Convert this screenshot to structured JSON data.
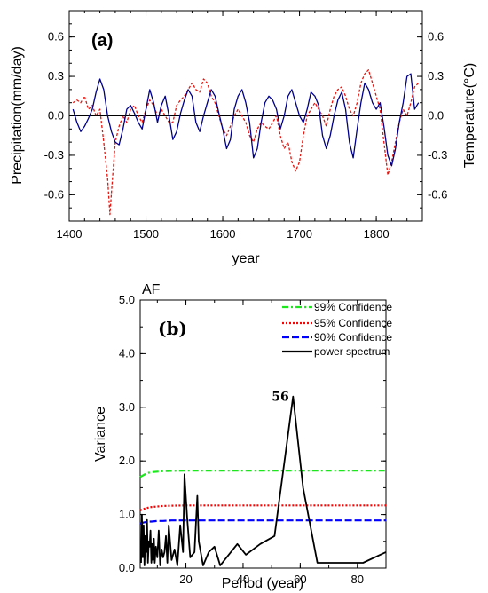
{
  "chart_data": [
    {
      "panel_label": "(a)",
      "type": "line",
      "xlabel": "year",
      "ylabel_left": "Precipitation(mm/day)",
      "ylabel_right": "Temperature(°C)",
      "xlim": [
        1400,
        1860
      ],
      "ylim": [
        -0.8,
        0.8
      ],
      "x_ticks": [
        1400,
        1500,
        1600,
        1700,
        1800
      ],
      "y_ticks": [
        -0.6,
        -0.3,
        0.0,
        0.3,
        0.6
      ],
      "y_tick_labels": [
        "-0.6",
        "-0.3",
        "0.0",
        "0.3",
        "0.6"
      ],
      "colors": {
        "precip": "#00008b",
        "temp": "#e8150f",
        "left_label": "#1a1aa8",
        "right_label": "#e8150f"
      },
      "series": [
        {
          "key": "precip",
          "style": "solid",
          "x": [
            1405,
            1410,
            1415,
            1420,
            1425,
            1430,
            1435,
            1440,
            1445,
            1450,
            1455,
            1460,
            1465,
            1470,
            1475,
            1480,
            1485,
            1490,
            1495,
            1500,
            1505,
            1510,
            1515,
            1520,
            1525,
            1530,
            1535,
            1540,
            1545,
            1550,
            1555,
            1560,
            1565,
            1570,
            1575,
            1580,
            1585,
            1590,
            1595,
            1600,
            1605,
            1610,
            1615,
            1620,
            1625,
            1630,
            1635,
            1640,
            1645,
            1650,
            1655,
            1660,
            1665,
            1670,
            1675,
            1680,
            1685,
            1690,
            1695,
            1700,
            1705,
            1710,
            1715,
            1720,
            1725,
            1730,
            1735,
            1740,
            1745,
            1750,
            1755,
            1760,
            1765,
            1770,
            1775,
            1780,
            1785,
            1790,
            1795,
            1800,
            1805,
            1810,
            1815,
            1820,
            1825,
            1830,
            1835,
            1840,
            1845,
            1850,
            1855
          ],
          "y": [
            0.05,
            -0.05,
            -0.12,
            -0.08,
            -0.02,
            0.05,
            0.18,
            0.28,
            0.2,
            0.0,
            -0.12,
            -0.2,
            -0.22,
            -0.1,
            0.05,
            0.08,
            0.02,
            -0.05,
            -0.1,
            0.05,
            0.2,
            0.1,
            -0.05,
            0.08,
            0.15,
            0.0,
            -0.18,
            -0.12,
            0.02,
            0.12,
            0.2,
            0.15,
            -0.05,
            -0.12,
            0.0,
            0.1,
            0.2,
            0.15,
            0.02,
            -0.1,
            -0.25,
            -0.18,
            0.05,
            0.15,
            0.2,
            0.1,
            -0.05,
            -0.32,
            -0.25,
            -0.05,
            0.1,
            0.15,
            0.12,
            0.05,
            -0.1,
            0.0,
            0.15,
            0.2,
            0.1,
            0.0,
            -0.05,
            0.05,
            0.18,
            0.15,
            0.08,
            -0.15,
            -0.25,
            -0.15,
            0.0,
            0.12,
            0.18,
            0.05,
            -0.2,
            -0.32,
            -0.1,
            0.1,
            0.25,
            0.2,
            0.1,
            0.05,
            0.1,
            -0.08,
            -0.3,
            -0.38,
            -0.25,
            -0.05,
            0.1,
            0.3,
            0.32,
            0.05,
            0.1
          ]
        },
        {
          "key": "temp",
          "style": "dashed",
          "x": [
            1405,
            1410,
            1415,
            1420,
            1425,
            1430,
            1435,
            1440,
            1445,
            1450,
            1453,
            1456,
            1460,
            1465,
            1470,
            1475,
            1480,
            1485,
            1490,
            1495,
            1500,
            1505,
            1510,
            1515,
            1520,
            1525,
            1530,
            1535,
            1540,
            1545,
            1550,
            1555,
            1560,
            1565,
            1570,
            1575,
            1580,
            1585,
            1590,
            1595,
            1600,
            1605,
            1610,
            1615,
            1620,
            1625,
            1630,
            1635,
            1640,
            1645,
            1650,
            1655,
            1660,
            1665,
            1670,
            1675,
            1680,
            1685,
            1690,
            1695,
            1700,
            1705,
            1710,
            1715,
            1720,
            1725,
            1730,
            1735,
            1740,
            1745,
            1750,
            1755,
            1760,
            1765,
            1770,
            1775,
            1780,
            1785,
            1790,
            1795,
            1800,
            1805,
            1810,
            1815,
            1820,
            1825,
            1830,
            1835,
            1840,
            1845,
            1850,
            1855
          ],
          "y": [
            0.1,
            0.12,
            0.1,
            0.15,
            0.05,
            0.08,
            0.0,
            0.05,
            -0.2,
            -0.48,
            -0.75,
            -0.5,
            -0.2,
            -0.08,
            0.0,
            -0.05,
            0.05,
            0.08,
            0.0,
            -0.05,
            0.05,
            0.12,
            0.08,
            0.0,
            0.05,
            0.0,
            -0.05,
            -0.05,
            0.08,
            0.12,
            0.15,
            0.2,
            0.25,
            0.2,
            0.18,
            0.28,
            0.25,
            0.15,
            0.1,
            0.0,
            -0.1,
            -0.15,
            -0.08,
            0.0,
            0.05,
            0.0,
            -0.05,
            -0.15,
            -0.2,
            -0.1,
            -0.05,
            -0.08,
            -0.1,
            -0.05,
            0.0,
            -0.15,
            -0.25,
            -0.2,
            -0.35,
            -0.42,
            -0.35,
            -0.15,
            0.0,
            0.05,
            0.1,
            0.05,
            0.0,
            -0.08,
            0.05,
            0.15,
            0.2,
            0.22,
            0.15,
            0.05,
            0.0,
            0.1,
            0.25,
            0.32,
            0.35,
            0.25,
            0.15,
            0.05,
            -0.2,
            -0.45,
            -0.35,
            -0.2,
            -0.05,
            0.05,
            0.0,
            0.1,
            0.22,
            0.25
          ]
        }
      ]
    },
    {
      "panel_label": "(b)",
      "title": "AF",
      "type": "line",
      "xlabel": "Period (year)",
      "ylabel": "Variance",
      "xlim": [
        4,
        90
      ],
      "ylim": [
        0,
        5.0
      ],
      "x_ticks": [
        20,
        40,
        60,
        80
      ],
      "y_ticks": [
        0,
        1,
        2,
        3,
        4,
        5
      ],
      "y_tick_labels": [
        "0.0",
        "1.0",
        "2.0",
        "3.0",
        "4.0",
        "5.0"
      ],
      "annotation": {
        "text": "56",
        "x": 52.5,
        "y": 3.2
      },
      "legend_position": "top-right",
      "colors": {
        "c99": "#1ee61e",
        "c95": "#ff0000",
        "c90": "#0000ff",
        "power": "#000000"
      },
      "series": [
        {
          "key": "c99",
          "name": "99% Confidence",
          "style": "dashdot",
          "x": [
            4,
            5,
            6,
            7,
            8,
            10,
            12,
            15,
            20,
            30,
            50,
            70,
            90
          ],
          "y": [
            1.7,
            1.73,
            1.76,
            1.78,
            1.79,
            1.8,
            1.81,
            1.815,
            1.82,
            1.82,
            1.82,
            1.82,
            1.82
          ]
        },
        {
          "key": "c95",
          "name": "95% Confidence",
          "style": "dotted",
          "x": [
            4,
            5,
            6,
            7,
            8,
            10,
            12,
            15,
            20,
            30,
            50,
            70,
            90
          ],
          "y": [
            1.08,
            1.1,
            1.12,
            1.13,
            1.14,
            1.15,
            1.16,
            1.165,
            1.17,
            1.17,
            1.17,
            1.17,
            1.17
          ]
        },
        {
          "key": "c90",
          "name": "90% Confidence",
          "style": "dashed",
          "x": [
            4,
            5,
            6,
            7,
            8,
            10,
            12,
            15,
            20,
            30,
            50,
            70,
            90
          ],
          "y": [
            0.83,
            0.85,
            0.86,
            0.87,
            0.87,
            0.88,
            0.88,
            0.89,
            0.89,
            0.89,
            0.89,
            0.89,
            0.89
          ]
        },
        {
          "key": "power",
          "name": "power spectrum",
          "style": "solid",
          "x": [
            4.3,
            4.6,
            4.9,
            5.2,
            5.5,
            5.8,
            6.1,
            6.4,
            6.7,
            7.0,
            7.3,
            7.6,
            7.9,
            8.2,
            8.5,
            8.8,
            9.1,
            9.5,
            10,
            10.5,
            11,
            11.5,
            12,
            12.5,
            13,
            13.5,
            14,
            15,
            16,
            17,
            18,
            19,
            19.5,
            20.5,
            21.5,
            23,
            24,
            24.5,
            26,
            28,
            30,
            32,
            35,
            38,
            41,
            46,
            51,
            56,
            57.5,
            61,
            66,
            71,
            76,
            82,
            90
          ],
          "y": [
            0.1,
            1.0,
            0.2,
            0.8,
            0.05,
            0.6,
            0.3,
            0.9,
            0.1,
            0.5,
            0.4,
            0.7,
            0.1,
            0.45,
            0.15,
            0.55,
            0.1,
            0.4,
            0.2,
            0.7,
            0.05,
            0.35,
            0.2,
            0.3,
            0.6,
            0.1,
            0.8,
            0.15,
            0.35,
            0.05,
            0.8,
            0.3,
            1.75,
            0.9,
            0.2,
            0.3,
            1.35,
            0.5,
            0.05,
            0.3,
            0.4,
            0.05,
            0.25,
            0.45,
            0.25,
            0.45,
            0.6,
            2.6,
            3.2,
            1.5,
            0.1,
            0.1,
            0.1,
            0.1,
            0.3
          ]
        }
      ]
    }
  ]
}
